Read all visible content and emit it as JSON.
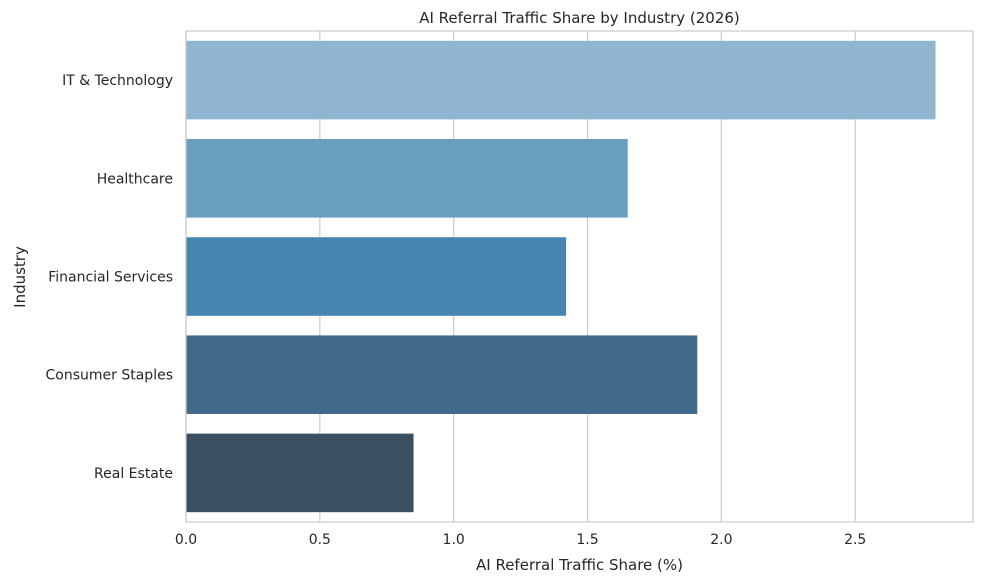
{
  "chart_data": {
    "type": "bar",
    "orientation": "horizontal",
    "title": "AI Referral Traffic Share by Industry (2026)",
    "xlabel": "AI Referral Traffic Share (%)",
    "ylabel": "Industry",
    "categories": [
      "IT & Technology",
      "Healthcare",
      "Financial Services",
      "Consumer Staples",
      "Real Estate"
    ],
    "values": [
      2.8,
      1.65,
      1.42,
      1.91,
      0.85
    ],
    "colors": [
      "#90b5d0",
      "#6a9ec0",
      "#4884b0",
      "#41698a",
      "#3a4f5f"
    ],
    "xlim": [
      0,
      2.94
    ],
    "xticks": [
      "0.0",
      "0.5",
      "1.0",
      "1.5",
      "2.0",
      "2.5"
    ],
    "grid": "vertical",
    "legend": "none"
  }
}
